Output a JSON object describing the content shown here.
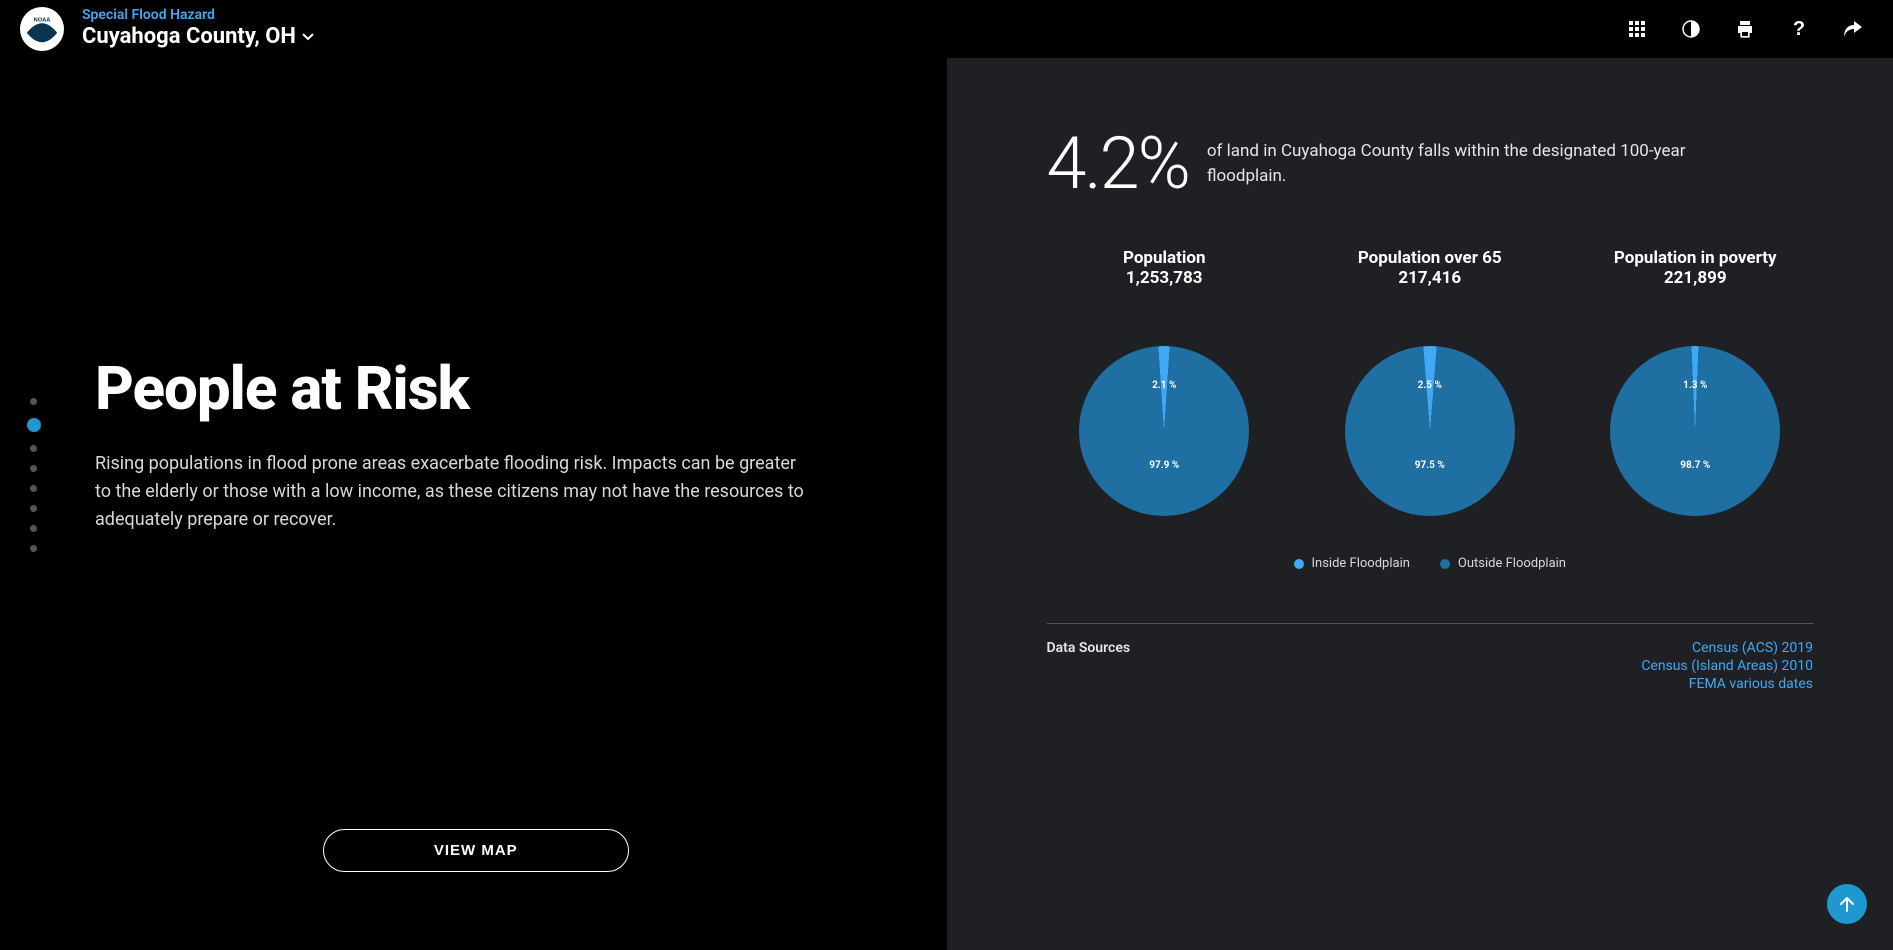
{
  "header": {
    "subtitle": "Special Flood Hazard",
    "location": "Cuyahoga County, OH"
  },
  "nav": {
    "total_dots": 8,
    "active_index": 1
  },
  "left": {
    "title": "People at Risk",
    "body": "Rising populations in flood prone areas exacerbate flooding risk. Impacts can be greater to the elderly or those with a low income, as these citizens may not have the resources to adequately prepare or recover.",
    "view_map_label": "VIEW MAP"
  },
  "right": {
    "stat_value": "4.2%",
    "stat_caption": "of land in Cuyahoga County falls within the designated 100-year floodplain.",
    "colors": {
      "inside": "#3fa9f5",
      "outside": "#1f6fa3",
      "panel_bg": "#1f2023",
      "link": "#3fa9f5"
    },
    "pies": [
      {
        "label": "Population",
        "value": "1,253,783",
        "inside_pct": 2.1,
        "outside_pct": 97.9
      },
      {
        "label": "Population over 65",
        "value": "217,416",
        "inside_pct": 2.5,
        "outside_pct": 97.5
      },
      {
        "label": "Population in poverty",
        "value": "221,899",
        "inside_pct": 1.3,
        "outside_pct": 98.7
      }
    ],
    "legend": {
      "inside_label": "Inside Floodplain",
      "outside_label": "Outside Floodplain"
    },
    "data_sources": {
      "title": "Data Sources",
      "links": [
        "Census (ACS) 2019",
        "Census (Island Areas) 2010",
        "FEMA various dates"
      ]
    }
  }
}
